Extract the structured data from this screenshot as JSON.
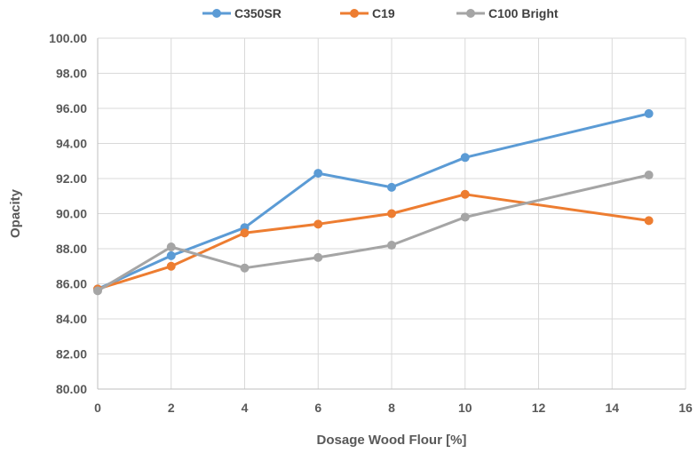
{
  "chart_data": {
    "type": "line",
    "title": "",
    "xlabel": "Dosage Wood Flour [%]",
    "ylabel": "Opacity",
    "xlim": [
      0,
      16
    ],
    "ylim": [
      80,
      100
    ],
    "x_ticks": [
      "0",
      "2",
      "4",
      "6",
      "8",
      "10",
      "12",
      "14",
      "16"
    ],
    "y_ticks": [
      "80.00",
      "82.00",
      "84.00",
      "86.00",
      "88.00",
      "90.00",
      "92.00",
      "94.00",
      "96.00",
      "98.00",
      "100.00"
    ],
    "grid": true,
    "legend_position": "top",
    "series": [
      {
        "name": "C350SR",
        "color": "#5B9BD5",
        "points": [
          [
            0,
            85.7
          ],
          [
            2,
            87.6
          ],
          [
            4,
            89.2
          ],
          [
            6,
            92.3
          ],
          [
            8,
            91.5
          ],
          [
            10,
            93.2
          ],
          [
            15,
            95.7
          ]
        ]
      },
      {
        "name": "C19",
        "color": "#ED7D31",
        "points": [
          [
            0,
            85.7
          ],
          [
            2,
            87.0
          ],
          [
            4,
            88.9
          ],
          [
            6,
            89.4
          ],
          [
            8,
            90.0
          ],
          [
            10,
            91.1
          ],
          [
            15,
            89.6
          ]
        ]
      },
      {
        "name": "C100 Bright",
        "color": "#A5A5A5",
        "points": [
          [
            0,
            85.6
          ],
          [
            2,
            88.1
          ],
          [
            4,
            86.9
          ],
          [
            6,
            87.5
          ],
          [
            8,
            88.2
          ],
          [
            10,
            89.8
          ],
          [
            15,
            92.2
          ]
        ]
      }
    ]
  }
}
